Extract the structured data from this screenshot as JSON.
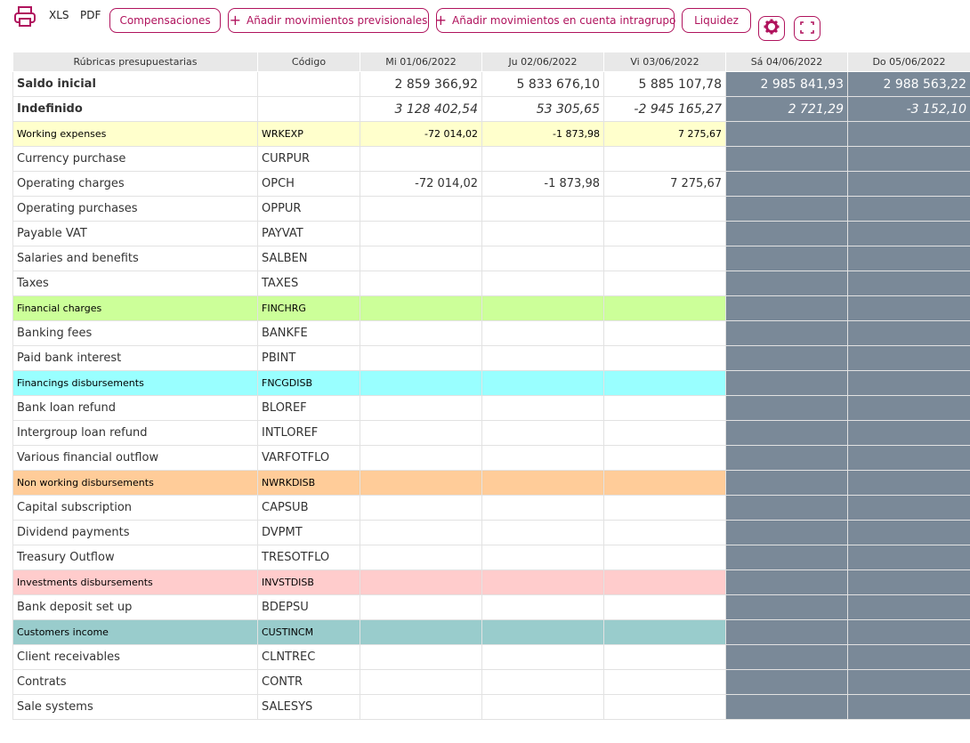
{
  "toolbar": {
    "xls_label": "XLS",
    "pdf_label": "PDF",
    "compensaciones_label": "Compensaciones",
    "add_prev_label": "Añadir movimientos previsionales",
    "add_intragroup_label": "Añadir movimientos en cuenta intragrupo",
    "liquidez_label": "Liquidez",
    "accent_color": "#b0135d"
  },
  "table": {
    "headers": [
      "Rúbricas presupuestarias",
      "Código",
      "Mi 01/06/2022",
      "Ju 02/06/2022",
      "Vi 03/06/2022",
      "Sá 04/06/2022",
      "Do 05/06/2022"
    ],
    "weekend_color": "#7a8998",
    "rows": [
      {
        "type": "bold",
        "label": "Saldo inicial",
        "code": "",
        "values": [
          "2 859 366,92",
          "5 833 676,10",
          "5 885 107,78",
          "2 985 841,93",
          "2 988 563,22"
        ]
      },
      {
        "type": "ital",
        "label": "Indefinido",
        "code": "",
        "values": [
          "3 128 402,54",
          "53 305,65",
          "-2 945 165,27",
          "2 721,29",
          "-3 152,10"
        ]
      },
      {
        "type": "cat",
        "color": "c1",
        "label": "Working expenses",
        "code": "WRKEXP",
        "values": [
          "-72 014,02",
          "-1 873,98",
          "7 275,67",
          "",
          ""
        ]
      },
      {
        "type": "item",
        "label": "Currency purchase",
        "code": "CURPUR",
        "values": [
          "",
          "",
          "",
          "",
          ""
        ]
      },
      {
        "type": "item",
        "label": "Operating charges",
        "code": "OPCH",
        "values": [
          "-72 014,02",
          "-1 873,98",
          "7 275,67",
          "",
          ""
        ]
      },
      {
        "type": "item",
        "label": "Operating purchases",
        "code": "OPPUR",
        "values": [
          "",
          "",
          "",
          "",
          ""
        ]
      },
      {
        "type": "item",
        "label": "Payable VAT",
        "code": "PAYVAT",
        "values": [
          "",
          "",
          "",
          "",
          ""
        ]
      },
      {
        "type": "item",
        "label": "Salaries and benefits",
        "code": "SALBEN",
        "values": [
          "",
          "",
          "",
          "",
          ""
        ]
      },
      {
        "type": "item",
        "label": "Taxes",
        "code": "TAXES",
        "values": [
          "",
          "",
          "",
          "",
          ""
        ]
      },
      {
        "type": "cat",
        "color": "c2",
        "label": "Financial charges",
        "code": "FINCHRG",
        "values": [
          "",
          "",
          "",
          "",
          ""
        ]
      },
      {
        "type": "item",
        "label": "Banking fees",
        "code": "BANKFE",
        "values": [
          "",
          "",
          "",
          "",
          ""
        ]
      },
      {
        "type": "item",
        "label": "Paid bank interest",
        "code": "PBINT",
        "values": [
          "",
          "",
          "",
          "",
          ""
        ]
      },
      {
        "type": "cat",
        "color": "c3",
        "label": "Financings disbursements",
        "code": "FNCGDISB",
        "values": [
          "",
          "",
          "",
          "",
          ""
        ]
      },
      {
        "type": "item",
        "label": "Bank loan refund",
        "code": "BLOREF",
        "values": [
          "",
          "",
          "",
          "",
          ""
        ]
      },
      {
        "type": "item",
        "label": "Intergroup loan refund",
        "code": "INTLOREF",
        "values": [
          "",
          "",
          "",
          "",
          ""
        ]
      },
      {
        "type": "item",
        "label": "Various financial outflow",
        "code": "VARFOTFLO",
        "values": [
          "",
          "",
          "",
          "",
          ""
        ]
      },
      {
        "type": "cat",
        "color": "c4",
        "label": "Non working disbursements",
        "code": "NWRKDISB",
        "values": [
          "",
          "",
          "",
          "",
          ""
        ]
      },
      {
        "type": "item",
        "label": "Capital subscription",
        "code": "CAPSUB",
        "values": [
          "",
          "",
          "",
          "",
          ""
        ]
      },
      {
        "type": "item",
        "label": "Dividend payments",
        "code": "DVPMT",
        "values": [
          "",
          "",
          "",
          "",
          ""
        ]
      },
      {
        "type": "item",
        "label": "Treasury Outflow",
        "code": "TRESOTFLO",
        "values": [
          "",
          "",
          "",
          "",
          ""
        ]
      },
      {
        "type": "cat",
        "color": "c5",
        "label": "Investments disbursements",
        "code": "INVSTDISB",
        "values": [
          "",
          "",
          "",
          "",
          ""
        ]
      },
      {
        "type": "item",
        "label": "Bank deposit set up",
        "code": "BDEPSU",
        "values": [
          "",
          "",
          "",
          "",
          ""
        ]
      },
      {
        "type": "cat",
        "color": "c6",
        "label": "Customers income",
        "code": "CUSTINCM",
        "values": [
          "",
          "",
          "",
          "",
          ""
        ]
      },
      {
        "type": "item",
        "label": "Client receivables",
        "code": "CLNTREC",
        "values": [
          "",
          "",
          "",
          "",
          ""
        ]
      },
      {
        "type": "item",
        "label": "Contrats",
        "code": "CONTR",
        "values": [
          "",
          "",
          "",
          "",
          ""
        ]
      },
      {
        "type": "item",
        "label": "Sale systems",
        "code": "SALESYS",
        "values": [
          "",
          "",
          "",
          "",
          ""
        ]
      }
    ]
  }
}
